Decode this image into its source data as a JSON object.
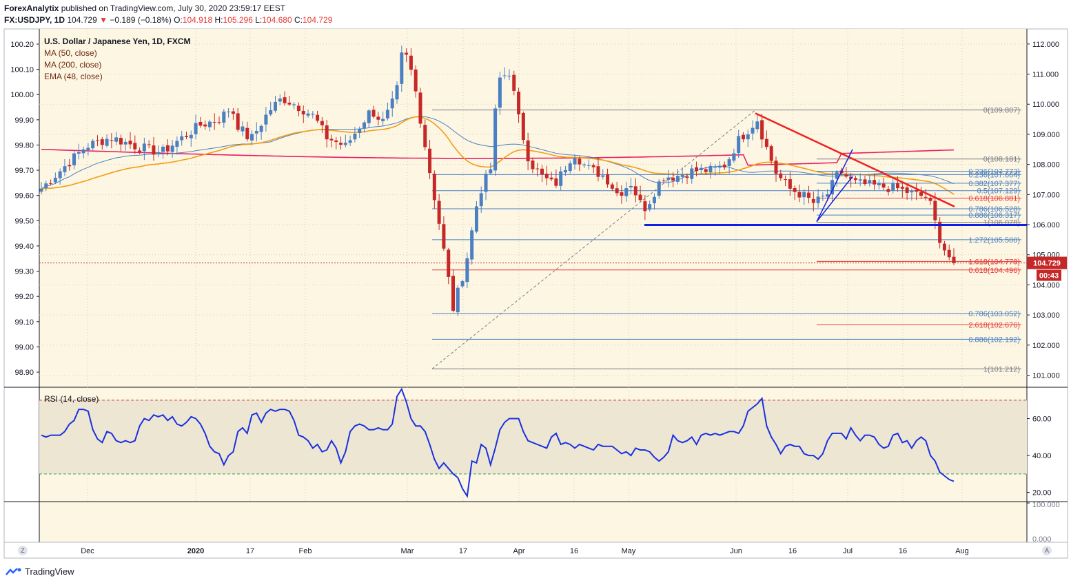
{
  "header": {
    "publisher": "ForexAnalytix",
    "published_text": "published on TradingView.com, July 30, 2020 23:59:17 EEST",
    "symbol": "FX:USDJPY, 1D",
    "last": "104.729",
    "change": "−0.189 (−0.18%)",
    "o_label": "O:",
    "o": "104.918",
    "h_label": "H:",
    "h": "105.296",
    "l_label": "L:",
    "l": "104.680",
    "c_label": "C:",
    "c": "104.729"
  },
  "legend": {
    "title": "U.S. Dollar / Japanese Yen, 1D, FXCM",
    "ma50": "MA (50, close)",
    "ma200": "MA (200, close)",
    "ema48": "EMA (48, close)"
  },
  "rsi_label": "RSI (14, close)",
  "footer": {
    "brand": "TradingView"
  },
  "corner_left": "Z",
  "corner_right": "A",
  "colors": {
    "background": "#fdf6e3",
    "up": "#4a7fc1",
    "down": "#c62828",
    "ma50": "#4a7fc1",
    "ma200": "#e91e63",
    "ema48": "#f39c12",
    "trendline": "#f02020",
    "support": "#1020e0",
    "rsi": "#1a30e0"
  },
  "chart_data": {
    "type": "candlestick",
    "price_axis_right": {
      "range": [
        100.6,
        112.5
      ],
      "ticks": [
        "112.000",
        "111.000",
        "110.000",
        "109.000",
        "108.000",
        "107.000",
        "106.000",
        "105.000",
        "104.000",
        "103.000",
        "102.000",
        "101.000"
      ]
    },
    "price_axis_left": {
      "range": [
        98.84,
        100.26
      ],
      "ticks": [
        "100.20",
        "100.10",
        "100.00",
        "99.90",
        "99.80",
        "99.70",
        "99.60",
        "99.50",
        "99.40",
        "99.30",
        "99.20",
        "99.10",
        "99.00",
        "98.90"
      ]
    },
    "x_ticks": [
      "Dec",
      "2020",
      "17",
      "Feb",
      "Mar",
      "17",
      "Apr",
      "16",
      "May",
      "Jun",
      "16",
      "Jul",
      "16",
      "Aug"
    ],
    "last_price_label": "104.729",
    "countdown_label": "00:43",
    "fib_levels": [
      {
        "label": "0(109.807)",
        "price": 109.807,
        "color": "#787b86"
      },
      {
        "label": "0(108.181)",
        "price": 108.181,
        "color": "#787b86"
      },
      {
        "label": "0.236(107.773)",
        "price": 107.773,
        "color": "#4a7fc1"
      },
      {
        "label": "0.236(107.664)",
        "price": 107.664,
        "color": "#4a7fc1"
      },
      {
        "label": "0.382(107.377)",
        "price": 107.377,
        "color": "#4a7fc1"
      },
      {
        "label": "0.5(107.129)",
        "price": 107.129,
        "color": "#4a7fc1"
      },
      {
        "label": "0.618(106.881)",
        "price": 106.881,
        "color": "#e53935"
      },
      {
        "label": "0.786(106.528)",
        "price": 106.528,
        "color": "#4a7fc1"
      },
      {
        "label": "0.886(106.317)",
        "price": 106.317,
        "color": "#4a7fc1"
      },
      {
        "label": "1(106.078)",
        "price": 106.078,
        "color": "#787b86"
      },
      {
        "label": "1.272(105.500)",
        "price": 105.5,
        "color": "#4a7fc1"
      },
      {
        "label": "1.618(104.778)",
        "price": 104.778,
        "color": "#e53935"
      },
      {
        "label": "0.618(104.496)",
        "price": 104.496,
        "color": "#e53935"
      },
      {
        "label": "0.786(103.052)",
        "price": 103.052,
        "color": "#4a7fc1"
      },
      {
        "label": "2.618(102.676)",
        "price": 102.676,
        "color": "#e53935"
      },
      {
        "label": "0.886(102.192)",
        "price": 102.192,
        "color": "#4a7fc1"
      },
      {
        "label": "1(101.212)",
        "price": 101.212,
        "color": "#787b86"
      }
    ],
    "rsi": {
      "title": "RSI (14, close)",
      "range": [
        15,
        77
      ],
      "ticks": [
        "60.00",
        "40.00",
        "20.00"
      ],
      "overbought": 70,
      "oversold": 30,
      "values": [
        51,
        50,
        51,
        51,
        51,
        53,
        57,
        59,
        65,
        65,
        64,
        54,
        49,
        47,
        53,
        52,
        48,
        47,
        48,
        47,
        48,
        56,
        60,
        59,
        62,
        61,
        62,
        59,
        61,
        57,
        56,
        58,
        61,
        60,
        57,
        52,
        45,
        42,
        41,
        35,
        40,
        42,
        53,
        55,
        52,
        62,
        63,
        58,
        63,
        65,
        64,
        65,
        65,
        64,
        59,
        51,
        50,
        48,
        44,
        46,
        42,
        43,
        48,
        44,
        36,
        42,
        53,
        56,
        57,
        56,
        54,
        54,
        55,
        54,
        54,
        57,
        72,
        76,
        69,
        60,
        56,
        56,
        53,
        46,
        38,
        33,
        36,
        33,
        30,
        28,
        22,
        18,
        37,
        36,
        46,
        44,
        35,
        44,
        54,
        58,
        60,
        60,
        60,
        53,
        48,
        47,
        46,
        45,
        44,
        50,
        52,
        46,
        47,
        46,
        44,
        46,
        45,
        44,
        43,
        46,
        45,
        45,
        45,
        43,
        41,
        42,
        40,
        44,
        43,
        43,
        42,
        39,
        37,
        39,
        42,
        51,
        48,
        47,
        48,
        50,
        46,
        51,
        52,
        51,
        52,
        51,
        52,
        53,
        53,
        52,
        56,
        64,
        66,
        68,
        71,
        56,
        50,
        46,
        41,
        45,
        46,
        45,
        45,
        41,
        40,
        40,
        38,
        41,
        48,
        52,
        52,
        52,
        49,
        55,
        51,
        48,
        51,
        51,
        50,
        46,
        44,
        45,
        51,
        52,
        47,
        48,
        44,
        48,
        50,
        48,
        40,
        37,
        31,
        29,
        27,
        26
      ]
    }
  }
}
